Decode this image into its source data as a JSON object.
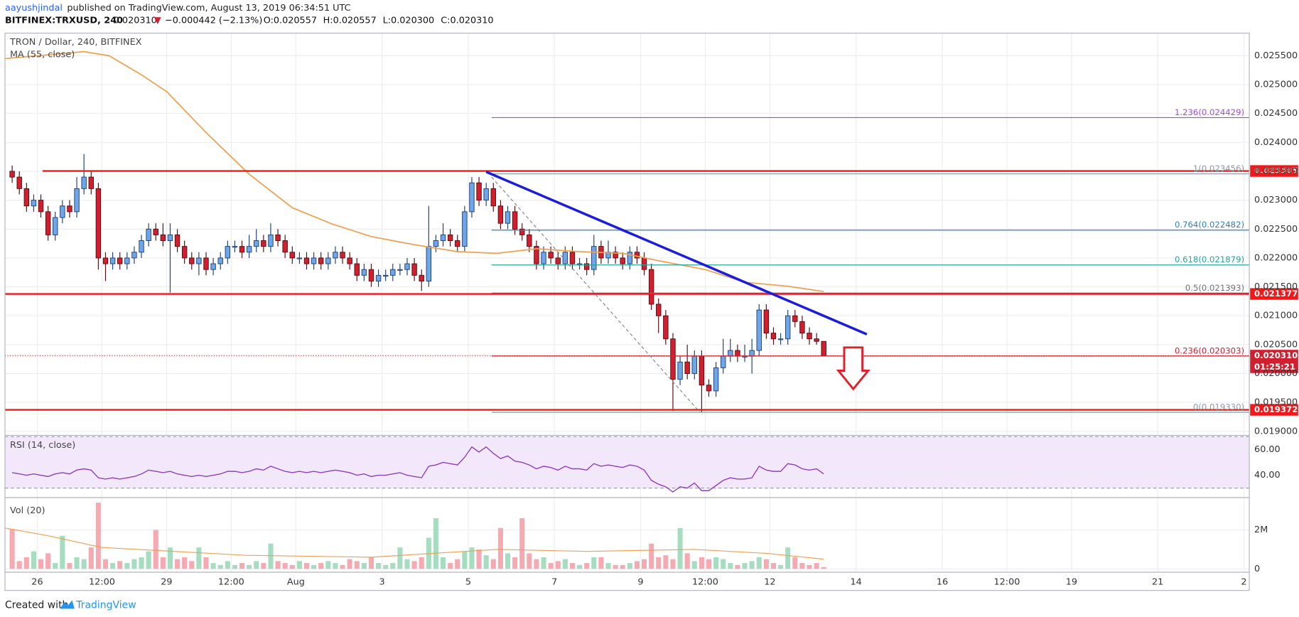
{
  "header": {
    "author": "aayushjindal",
    "published": " published on TradingView.com, August 13, 2019 06:34:51 UTC",
    "symbol": "BITFINEX:TRXUSD, 240",
    "last": "0.020310",
    "arrow": "▼",
    "change": "−0.000442 (−2.13%)",
    "open": "O:0.020557",
    "high": "H:0.020557",
    "low": "L:0.020300",
    "close": "C:0.020310"
  },
  "footer": {
    "created": "Created with",
    "brand": "TradingView"
  },
  "chart_data": {
    "type": "candlestick",
    "title": "TRON / Dollar, 240, BITFINEX",
    "x": [
      8,
      12,
      16,
      20,
      24,
      28,
      32,
      36,
      40,
      44,
      48,
      52,
      56,
      60,
      64,
      68,
      72,
      76,
      80,
      84,
      88,
      92,
      96,
      100,
      104,
      108,
      112,
      116,
      120,
      124,
      128,
      132,
      136,
      140,
      144,
      148,
      152,
      156,
      160,
      164,
      168,
      172,
      176,
      180,
      184,
      188,
      192,
      196,
      200,
      204,
      208,
      212,
      216,
      220,
      224,
      228,
      232,
      236,
      240,
      244,
      248,
      252,
      256,
      260,
      264,
      268,
      272,
      276,
      280,
      284,
      288,
      292,
      296,
      300,
      304,
      308,
      312,
      316,
      320,
      324,
      328,
      332,
      336,
      340,
      344,
      348,
      352,
      356,
      360,
      364,
      368,
      372,
      376,
      380,
      384,
      388,
      392,
      396,
      400,
      404,
      408,
      412,
      416,
      420,
      424,
      428,
      432,
      436,
      440,
      444,
      448,
      452,
      456,
      460
    ],
    "candles": [
      [
        0.0235,
        0.0236,
        0.0233,
        0.0234
      ],
      [
        0.0234,
        0.0235,
        0.0231,
        0.0232
      ],
      [
        0.0232,
        0.0233,
        0.0228,
        0.0229
      ],
      [
        0.0229,
        0.0231,
        0.0228,
        0.023
      ],
      [
        0.023,
        0.0231,
        0.0227,
        0.0228
      ],
      [
        0.0228,
        0.0229,
        0.0223,
        0.0224
      ],
      [
        0.0224,
        0.0228,
        0.0223,
        0.0227
      ],
      [
        0.0227,
        0.023,
        0.0226,
        0.0229
      ],
      [
        0.0229,
        0.023,
        0.0227,
        0.0228
      ],
      [
        0.0228,
        0.0234,
        0.0227,
        0.0232
      ],
      [
        0.0232,
        0.0238,
        0.0231,
        0.0234
      ],
      [
        0.0234,
        0.0235,
        0.0231,
        0.0232
      ],
      [
        0.0232,
        0.0233,
        0.0218,
        0.022
      ],
      [
        0.022,
        0.0221,
        0.0216,
        0.0219
      ],
      [
        0.0219,
        0.0221,
        0.0218,
        0.022
      ],
      [
        0.022,
        0.0221,
        0.0218,
        0.0219
      ],
      [
        0.0219,
        0.0221,
        0.0218,
        0.022
      ],
      [
        0.022,
        0.0222,
        0.0219,
        0.0221
      ],
      [
        0.0221,
        0.0224,
        0.022,
        0.0223
      ],
      [
        0.0223,
        0.0226,
        0.0222,
        0.0225
      ],
      [
        0.0225,
        0.0226,
        0.0223,
        0.0224
      ],
      [
        0.0224,
        0.0226,
        0.0222,
        0.0223
      ],
      [
        0.0223,
        0.0226,
        0.0214,
        0.0224
      ],
      [
        0.0224,
        0.0225,
        0.0221,
        0.0222
      ],
      [
        0.0222,
        0.0223,
        0.0219,
        0.022
      ],
      [
        0.022,
        0.0221,
        0.0218,
        0.0219
      ],
      [
        0.0219,
        0.0221,
        0.0217,
        0.022
      ],
      [
        0.022,
        0.0221,
        0.0217,
        0.0218
      ],
      [
        0.0218,
        0.022,
        0.0217,
        0.0219
      ],
      [
        0.0219,
        0.0221,
        0.0218,
        0.022
      ],
      [
        0.022,
        0.0223,
        0.0219,
        0.0222
      ],
      [
        0.0222,
        0.0223,
        0.0221,
        0.0222
      ],
      [
        0.0222,
        0.0223,
        0.022,
        0.0221
      ],
      [
        0.0221,
        0.0224,
        0.022,
        0.0222
      ],
      [
        0.0222,
        0.0225,
        0.0221,
        0.0223
      ],
      [
        0.0223,
        0.0224,
        0.0221,
        0.0222
      ],
      [
        0.0222,
        0.0226,
        0.0221,
        0.0224
      ],
      [
        0.0224,
        0.0225,
        0.0222,
        0.0223
      ],
      [
        0.0223,
        0.0224,
        0.022,
        0.0221
      ],
      [
        0.0221,
        0.0222,
        0.0219,
        0.022
      ],
      [
        0.022,
        0.0221,
        0.0219,
        0.022
      ],
      [
        0.022,
        0.0221,
        0.0218,
        0.0219
      ],
      [
        0.0219,
        0.0221,
        0.0218,
        0.022
      ],
      [
        0.022,
        0.0221,
        0.0218,
        0.0219
      ],
      [
        0.0219,
        0.0221,
        0.0218,
        0.022
      ],
      [
        0.022,
        0.0222,
        0.0219,
        0.0221
      ],
      [
        0.0221,
        0.0222,
        0.0219,
        0.022
      ],
      [
        0.022,
        0.0221,
        0.0218,
        0.0219
      ],
      [
        0.0219,
        0.022,
        0.0216,
        0.0217
      ],
      [
        0.0217,
        0.0219,
        0.0216,
        0.0218
      ],
      [
        0.0218,
        0.0219,
        0.0215,
        0.0216
      ],
      [
        0.0216,
        0.0218,
        0.0215,
        0.0217
      ],
      [
        0.0217,
        0.0218,
        0.0216,
        0.0217
      ],
      [
        0.0217,
        0.0219,
        0.0216,
        0.0218
      ],
      [
        0.0218,
        0.0219,
        0.0217,
        0.0218
      ],
      [
        0.0218,
        0.022,
        0.0217,
        0.0219
      ],
      [
        0.0219,
        0.022,
        0.0216,
        0.0217
      ],
      [
        0.0217,
        0.0218,
        0.02143,
        0.0216
      ],
      [
        0.0216,
        0.0229,
        0.0215,
        0.0222
      ],
      [
        0.0222,
        0.0224,
        0.0221,
        0.0223
      ],
      [
        0.0223,
        0.0226,
        0.0222,
        0.0224
      ],
      [
        0.0224,
        0.0225,
        0.0222,
        0.0223
      ],
      [
        0.0223,
        0.0224,
        0.0221,
        0.0222
      ],
      [
        0.0222,
        0.0229,
        0.0221,
        0.0228
      ],
      [
        0.0228,
        0.0234,
        0.0227,
        0.0233
      ],
      [
        0.0233,
        0.0234,
        0.0229,
        0.023
      ],
      [
        0.023,
        0.0233,
        0.0229,
        0.0232
      ],
      [
        0.0232,
        0.0233,
        0.0228,
        0.0229
      ],
      [
        0.0229,
        0.023,
        0.0225,
        0.0226
      ],
      [
        0.0226,
        0.0229,
        0.0225,
        0.0228
      ],
      [
        0.0228,
        0.0229,
        0.0224,
        0.0225
      ],
      [
        0.0225,
        0.0226,
        0.0223,
        0.0224
      ],
      [
        0.0224,
        0.0225,
        0.0221,
        0.0222
      ],
      [
        0.0222,
        0.0223,
        0.0218,
        0.0219
      ],
      [
        0.0219,
        0.0222,
        0.0218,
        0.0221
      ],
      [
        0.0221,
        0.0222,
        0.0219,
        0.022
      ],
      [
        0.022,
        0.0221,
        0.0218,
        0.0219
      ],
      [
        0.0219,
        0.0222,
        0.0218,
        0.0221
      ],
      [
        0.0221,
        0.0222,
        0.0218,
        0.0219
      ],
      [
        0.0219,
        0.022,
        0.0218,
        0.0219
      ],
      [
        0.0219,
        0.022,
        0.0217,
        0.0218
      ],
      [
        0.0218,
        0.0224,
        0.0217,
        0.0222
      ],
      [
        0.0222,
        0.0223,
        0.0219,
        0.022
      ],
      [
        0.022,
        0.0223,
        0.0219,
        0.0221
      ],
      [
        0.0221,
        0.0222,
        0.0219,
        0.022
      ],
      [
        0.022,
        0.0221,
        0.0218,
        0.0219
      ],
      [
        0.0219,
        0.0222,
        0.0218,
        0.0221
      ],
      [
        0.0221,
        0.0222,
        0.0219,
        0.022
      ],
      [
        0.022,
        0.0221,
        0.0217,
        0.0218
      ],
      [
        0.0218,
        0.0219,
        0.0211,
        0.0212
      ],
      [
        0.0212,
        0.0213,
        0.0207,
        0.021
      ],
      [
        0.021,
        0.0211,
        0.0205,
        0.0206
      ],
      [
        0.0206,
        0.0207,
        0.01935,
        0.0199
      ],
      [
        0.0199,
        0.0203,
        0.0198,
        0.0202
      ],
      [
        0.0202,
        0.0205,
        0.0199,
        0.02
      ],
      [
        0.02,
        0.0204,
        0.0199,
        0.0203
      ],
      [
        0.0203,
        0.0204,
        0.01933,
        0.0198
      ],
      [
        0.0198,
        0.0199,
        0.0196,
        0.0197
      ],
      [
        0.0197,
        0.0202,
        0.0196,
        0.0201
      ],
      [
        0.0201,
        0.0206,
        0.02,
        0.0203
      ],
      [
        0.0203,
        0.0206,
        0.0202,
        0.0204
      ],
      [
        0.0204,
        0.0205,
        0.0202,
        0.0203
      ],
      [
        0.0203,
        0.0205,
        0.0202,
        0.0203
      ],
      [
        0.0203,
        0.0206,
        0.02,
        0.0204
      ],
      [
        0.0204,
        0.0212,
        0.0203,
        0.0211
      ],
      [
        0.0211,
        0.0212,
        0.0206,
        0.0207
      ],
      [
        0.0207,
        0.0208,
        0.0205,
        0.0206
      ],
      [
        0.0206,
        0.0207,
        0.0205,
        0.0206
      ],
      [
        0.0206,
        0.0211,
        0.0205,
        0.021
      ],
      [
        0.021,
        0.0211,
        0.0208,
        0.0209
      ],
      [
        0.0209,
        0.021,
        0.0206,
        0.0207
      ],
      [
        0.0207,
        0.0208,
        0.0205,
        0.0206
      ],
      [
        0.0206,
        0.0207,
        0.0205,
        0.020557
      ],
      [
        0.020557,
        0.020557,
        0.0203,
        0.02031
      ]
    ],
    "up_color": "#6ea6e8",
    "down_color": "#d0202f",
    "xlim": [
      6,
      699
    ],
    "xticks": [
      {
        "value": 24,
        "label": "26"
      },
      {
        "value": 60,
        "label": "12:00"
      },
      {
        "value": 96,
        "label": "29"
      },
      {
        "value": 132,
        "label": "12:00"
      },
      {
        "value": 168,
        "label": "Aug"
      },
      {
        "value": 216,
        "label": "3"
      },
      {
        "value": 264,
        "label": "5"
      },
      {
        "value": 312,
        "label": "7"
      },
      {
        "value": 360,
        "label": "9"
      },
      {
        "value": 396,
        "label": "12:00"
      },
      {
        "value": 432,
        "label": "12"
      },
      {
        "value": 480,
        "label": "14"
      },
      {
        "value": 528,
        "label": "16"
      },
      {
        "value": 564,
        "label": "12:00"
      },
      {
        "value": 600,
        "label": "19"
      },
      {
        "value": 648,
        "label": "21"
      },
      {
        "value": 696,
        "label": "2"
      }
    ],
    "ylim": [
      0.01893,
      0.02589
    ],
    "yticks": [
      {
        "value": 0.019,
        "label": "0.019000"
      },
      {
        "value": 0.0195,
        "label": "0.019500"
      },
      {
        "value": 0.02,
        "label": "0.020000"
      },
      {
        "value": 0.0205,
        "label": "0.020500"
      },
      {
        "value": 0.021,
        "label": "0.021000"
      },
      {
        "value": 0.0215,
        "label": "0.021500"
      },
      {
        "value": 0.022,
        "label": "0.022000"
      },
      {
        "value": 0.0225,
        "label": "0.022500"
      },
      {
        "value": 0.023,
        "label": "0.023000"
      },
      {
        "value": 0.0235,
        "label": "0.023500"
      },
      {
        "value": 0.024,
        "label": "0.024000"
      },
      {
        "value": 0.0245,
        "label": "0.024500"
      },
      {
        "value": 0.025,
        "label": "0.025000"
      },
      {
        "value": 0.0255,
        "label": "0.025500"
      }
    ],
    "grid": true,
    "ma": {
      "name": "MA (55, close)",
      "color": "#f0a050",
      "x": [
        6,
        50,
        64,
        82,
        96,
        118,
        142,
        166,
        188,
        210,
        234,
        258,
        280,
        302,
        326,
        350,
        372,
        396,
        418,
        442,
        462
      ],
      "values": [
        0.02545,
        0.02557,
        0.0255,
        0.02517,
        0.02488,
        0.02417,
        0.02345,
        0.02287,
        0.02259,
        0.02237,
        0.02223,
        0.02211,
        0.02208,
        0.02216,
        0.02211,
        0.02208,
        0.02194,
        0.0218,
        0.02158,
        0.02151,
        0.02142
      ]
    },
    "levels": [
      {
        "value": 0.023505,
        "label": "0.023505",
        "from": 27,
        "color": "#f01818"
      },
      {
        "value": 0.021377,
        "label": "0.021377",
        "color": "#f01818"
      },
      {
        "value": 0.019372,
        "label": "0.019372",
        "color": "#f01818"
      }
    ],
    "current": {
      "value": 0.02031,
      "label": "0.020310",
      "countdown": "01:25:21",
      "color": "#d0202f"
    },
    "fib": {
      "from": 277,
      "levels": [
        {
          "value": 0.024429,
          "label": "1.236(0.024429)",
          "color": "#9c4fd6"
        },
        {
          "value": 0.023456,
          "label": "1(0.023456)",
          "color": "#8a96a8"
        },
        {
          "value": 0.022482,
          "label": "0.764(0.022482)",
          "color": "#2f7fc1"
        },
        {
          "value": 0.021879,
          "label": "0.618(0.021879)",
          "color": "#26a69a"
        },
        {
          "value": 0.021393,
          "label": "0.5(0.021393)",
          "color": "#6f7580"
        },
        {
          "value": 0.020303,
          "label": "0.236(0.020303)",
          "color": "#d0202f"
        },
        {
          "value": 0.01933,
          "label": "0(0.019330)",
          "color": "#8a96a8"
        }
      ]
    },
    "trendline": {
      "x": [
        274,
        486
      ],
      "values": [
        0.02349,
        0.02068
      ],
      "color": "#1c1ce0"
    },
    "fib_diagonal": {
      "x": [
        277,
        393
      ],
      "values": [
        0.0234,
        0.01933
      ],
      "color": "#888"
    },
    "rsi": {
      "name": "RSI (14, close)",
      "color": "#8e3fc4",
      "ylim": [
        22.6,
        71
      ],
      "band": [
        30,
        70
      ],
      "yticks": [
        {
          "value": 40,
          "label": "40.00"
        },
        {
          "value": 60,
          "label": "60.00"
        }
      ],
      "values": [
        42,
        41,
        40,
        41,
        40,
        39,
        41,
        42,
        41,
        44,
        45,
        44,
        38,
        37,
        38,
        37,
        38,
        39,
        41,
        44,
        43,
        42,
        43,
        41,
        40,
        39,
        40,
        39,
        40,
        41,
        43,
        43,
        42,
        43,
        45,
        44,
        47,
        45,
        43,
        42,
        43,
        42,
        43,
        42,
        43,
        44,
        43,
        42,
        40,
        41,
        39,
        40,
        40,
        41,
        42,
        40,
        39,
        38,
        47,
        48,
        50,
        49,
        48,
        54,
        62,
        58,
        62,
        57,
        53,
        55,
        51,
        50,
        48,
        45,
        47,
        46,
        44,
        47,
        45,
        45,
        44,
        49,
        47,
        48,
        47,
        46,
        48,
        47,
        44,
        36,
        33,
        31,
        27,
        31,
        30,
        34,
        28,
        28,
        32,
        36,
        38,
        37,
        37,
        38,
        47,
        44,
        43,
        43,
        49,
        48,
        45,
        44,
        45,
        41
      ]
    },
    "volume": {
      "name": "Vol (20)",
      "up_color": "#a6dcbf",
      "down_color": "#f5a9b1",
      "ylim": [
        -0.17,
        3.66
      ],
      "yticks": [
        0,
        {
          "value": 2,
          "label": "2M"
        }
      ],
      "values": [
        2.05,
        0.4,
        0.6,
        0.9,
        0.5,
        0.8,
        0.3,
        1.7,
        0.3,
        0.6,
        0.5,
        1.1,
        3.4,
        0.5,
        0.3,
        0.4,
        0.3,
        0.5,
        0.6,
        0.9,
        2,
        0.6,
        1.1,
        0.5,
        0.6,
        0.4,
        1.1,
        0.6,
        0.3,
        0.2,
        0.4,
        0.2,
        0.3,
        0.2,
        0.4,
        0.3,
        1.3,
        0.4,
        0.3,
        0.2,
        0.4,
        0.3,
        0.2,
        0.3,
        0.4,
        0.3,
        0.2,
        0.5,
        0.4,
        0.3,
        0.6,
        0.3,
        0.2,
        0.3,
        1.1,
        0.5,
        0.4,
        0.6,
        1.6,
        2.6,
        0.6,
        0.3,
        0.5,
        0.9,
        1.1,
        1,
        0.7,
        0.5,
        2.1,
        0.8,
        0.6,
        2.6,
        0.8,
        0.5,
        0.6,
        0.3,
        0.4,
        0.5,
        0.3,
        0.2,
        0.3,
        0.6,
        0.6,
        0.3,
        0.2,
        0.2,
        0.3,
        0.4,
        0.5,
        1.3,
        0.6,
        0.7,
        0.5,
        2.1,
        0.8,
        0.4,
        0.6,
        0.5,
        0.6,
        0.5,
        0.3,
        0.2,
        0.3,
        0.4,
        0.6,
        0.5,
        0.3,
        0.2,
        1.1,
        0.6,
        0.3,
        0.2,
        0.3,
        0.1
      ],
      "ma": {
        "color": "#f0a050",
        "x": [
          6,
          30,
          60,
          140,
          210,
          280,
          330,
          390,
          430,
          462
        ],
        "values": [
          2.1,
          1.7,
          1.1,
          0.7,
          0.6,
          1,
          0.9,
          1,
          0.8,
          0.5
        ]
      }
    }
  }
}
